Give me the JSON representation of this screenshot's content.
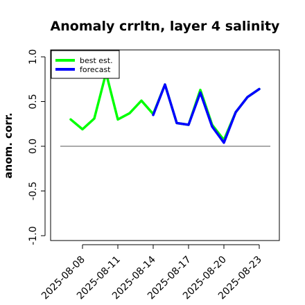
{
  "chart_data": {
    "type": "line",
    "title": "Anomaly crrltn, layer 4 salinity",
    "xlabel": "",
    "ylabel": "anom. corr.",
    "ylim": [
      -1.0,
      1.0
    ],
    "yticks": [
      "-1.0",
      "-0.5",
      "0.0",
      "0.5",
      "1.0"
    ],
    "xtick_labels": [
      {
        "label": "2025-08-08",
        "color": "#000000"
      },
      {
        "label": "2025-08-11",
        "color": "#000000"
      },
      {
        "label": "2025-08-14",
        "color": "#2e8b22"
      },
      {
        "label": "2025-08-17",
        "color": "#000000"
      },
      {
        "label": "2025-08-20",
        "color": "#000000"
      },
      {
        "label": "2025-08-23",
        "color": "#000000"
      }
    ],
    "x": [
      "2025-08-07",
      "2025-08-08",
      "2025-08-09",
      "2025-08-10",
      "2025-08-11",
      "2025-08-12",
      "2025-08-13",
      "2025-08-14",
      "2025-08-15",
      "2025-08-16",
      "2025-08-17",
      "2025-08-18",
      "2025-08-19",
      "2025-08-20",
      "2025-08-21",
      "2025-08-22",
      "2025-08-23"
    ],
    "series": [
      {
        "name": "best est.",
        "color": "#00ff00",
        "values": [
          0.3,
          0.19,
          0.31,
          0.82,
          0.3,
          0.37,
          0.51,
          0.36,
          0.69,
          0.26,
          0.24,
          0.63,
          0.24,
          0.07,
          0.38,
          0.55,
          0.64
        ]
      },
      {
        "name": "forecast",
        "color": "#0000ff",
        "values": [
          null,
          null,
          null,
          null,
          null,
          null,
          null,
          0.35,
          0.69,
          0.26,
          0.24,
          0.6,
          0.22,
          0.04,
          0.38,
          0.55,
          0.64
        ]
      }
    ],
    "reference_line": 0.0,
    "legend_position": "top-left",
    "grid": false
  }
}
